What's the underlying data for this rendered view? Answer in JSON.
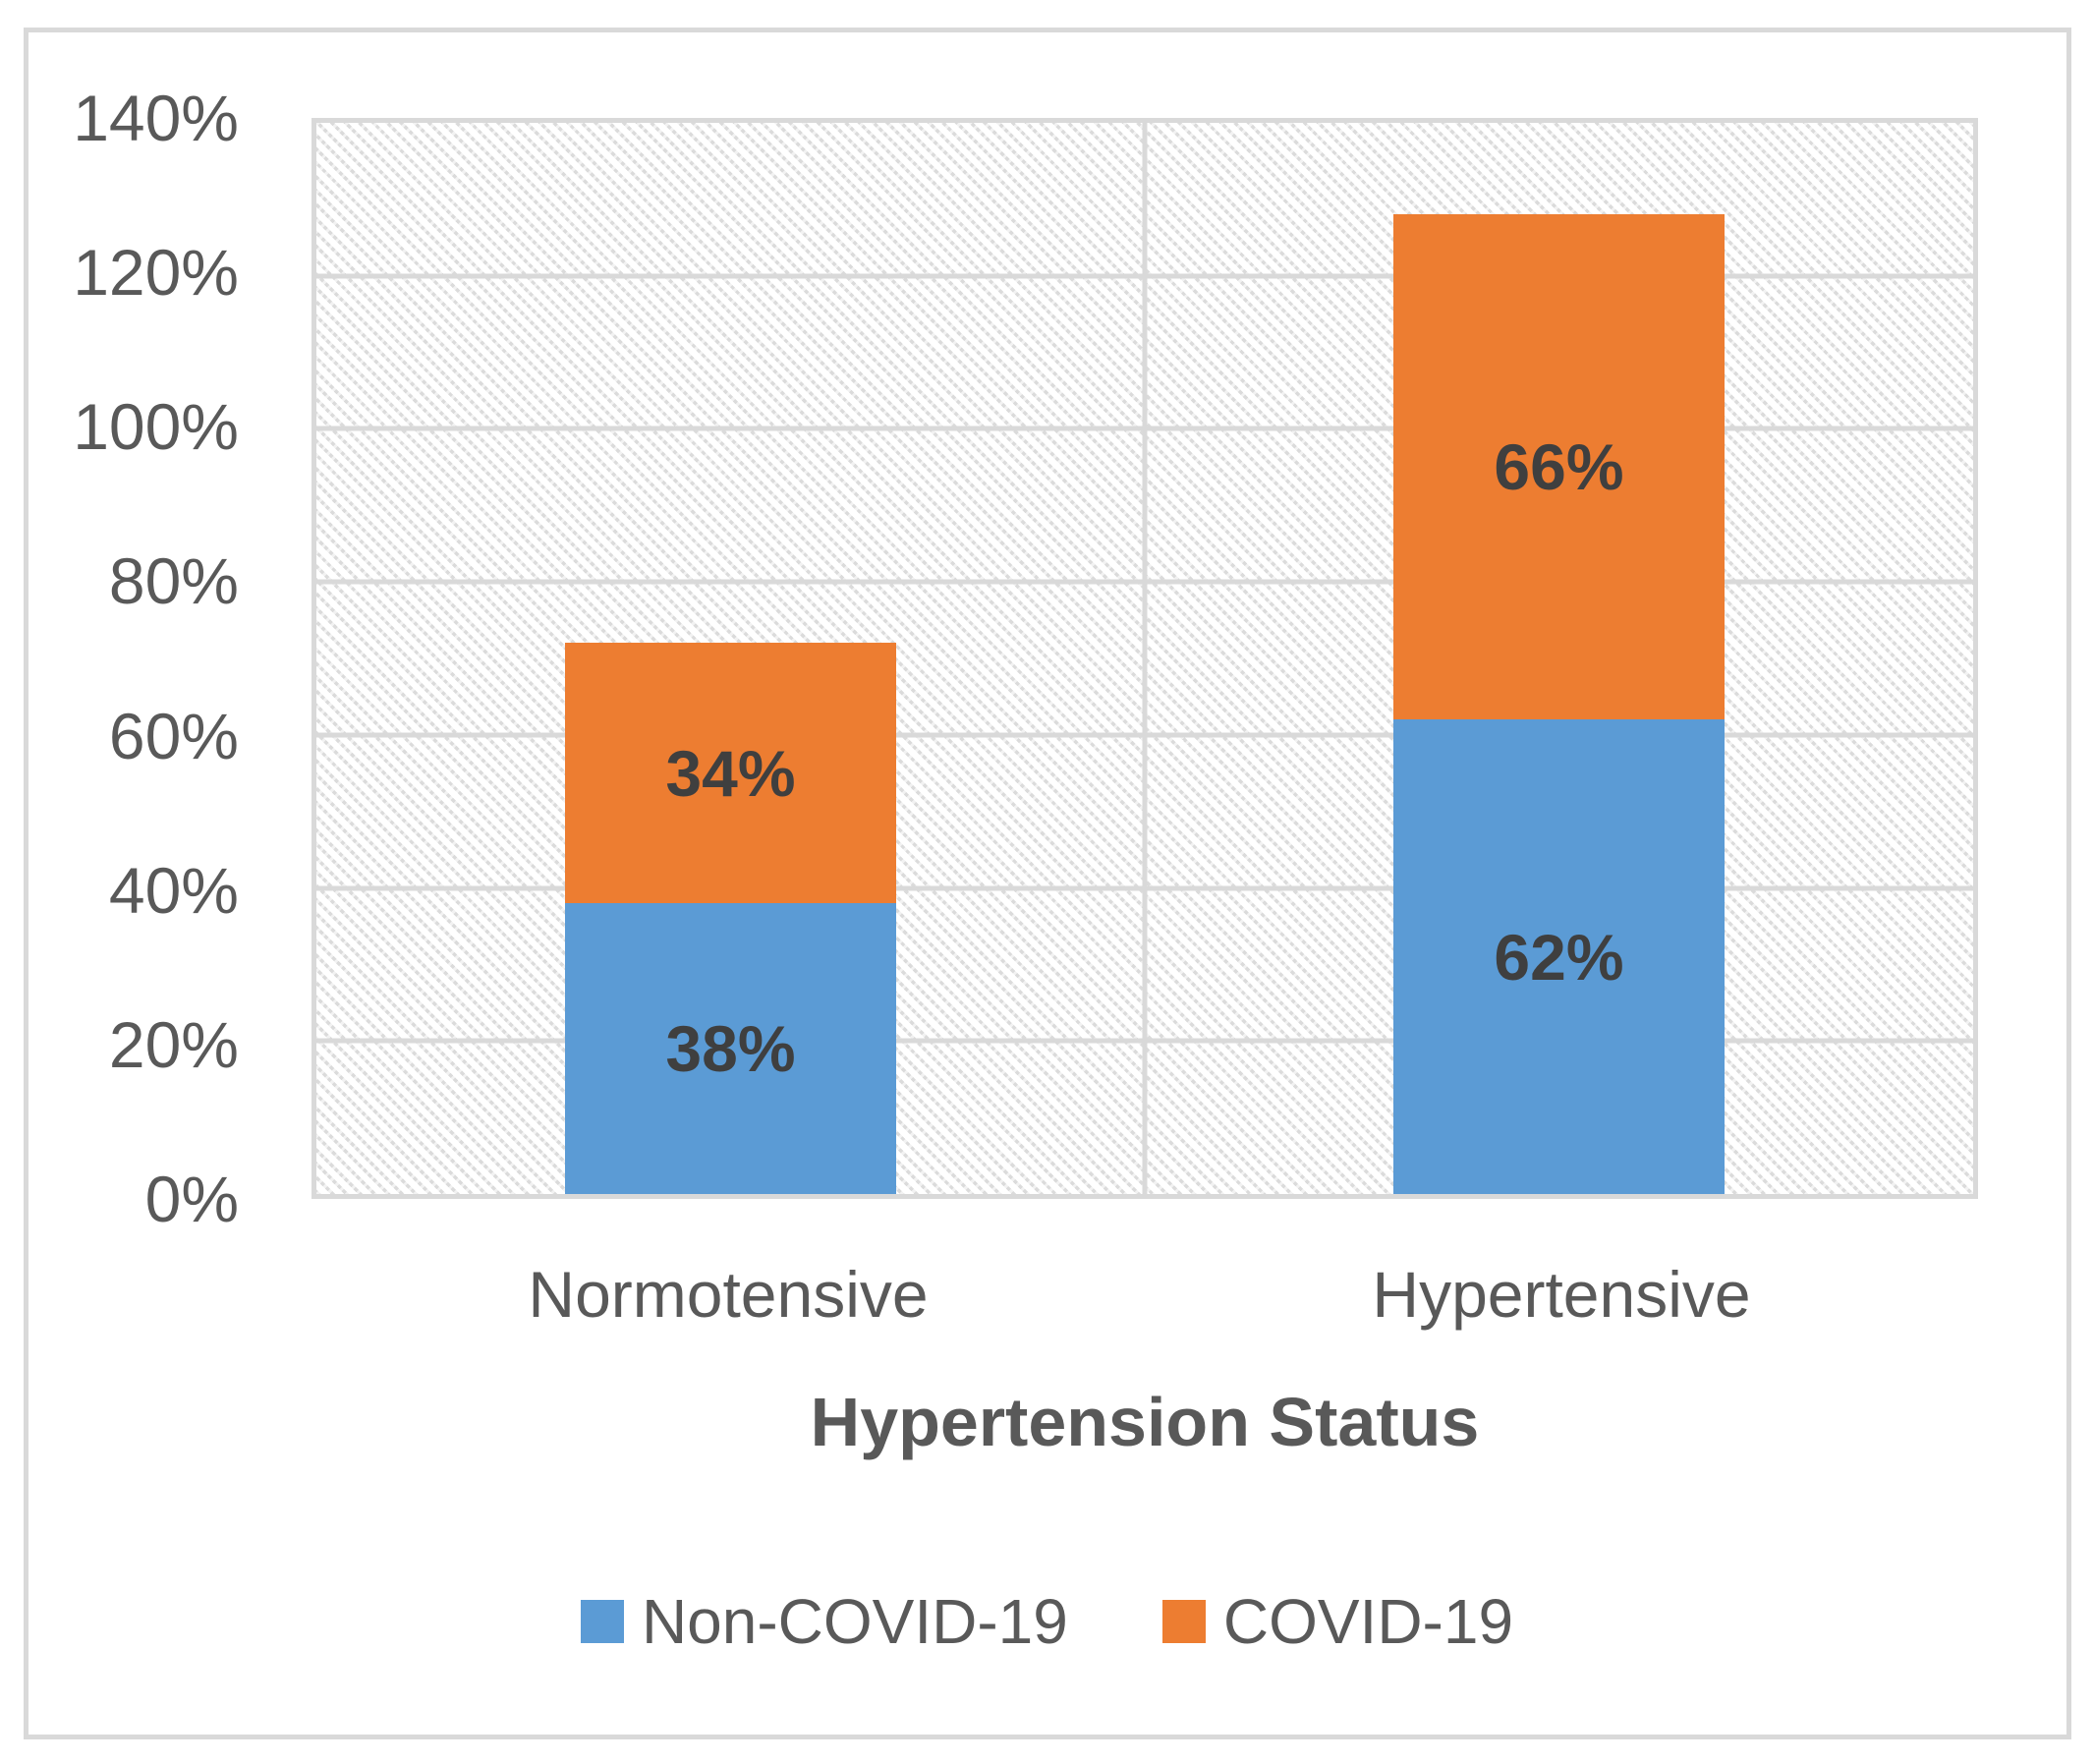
{
  "chart_data": {
    "type": "bar",
    "stacked": true,
    "categories": [
      "Normotensive",
      "Hypertensive"
    ],
    "series": [
      {
        "name": "Non-COVID-19",
        "color": "#5B9BD5",
        "values": [
          38,
          62
        ]
      },
      {
        "name": "COVID-19",
        "color": "#ED7D31",
        "values": [
          34,
          66
        ]
      }
    ],
    "value_suffix": "%",
    "title": "",
    "xlabel": "Hypertension Status",
    "ylabel": "",
    "ylim": [
      0,
      140
    ],
    "yticks": [
      0,
      20,
      40,
      60,
      80,
      100,
      120,
      140
    ],
    "grid": true,
    "plot_background": "diagonal-hatch",
    "legend_position": "bottom"
  },
  "colors": {
    "grid": "#D9D9D9",
    "text": "#595959",
    "data_label": "#3F3F3F",
    "hatch": "#DBDBDB"
  }
}
